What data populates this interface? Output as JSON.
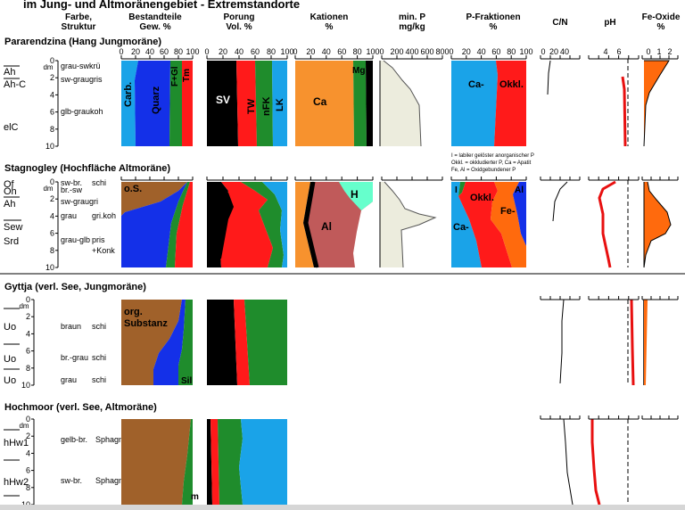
{
  "title": "im Jung- und Altmoränengebiet - Extremstandorte",
  "headers": {
    "farbe": [
      "Farbe,",
      "Struktur"
    ],
    "bestand": [
      "Bestandteile",
      "Gew. %"
    ],
    "porung": [
      "Porung",
      "Vol. %"
    ],
    "kationen": [
      "Kationen",
      "%"
    ],
    "minp": [
      "min. P",
      "mg/kg"
    ],
    "pfrak": [
      "P-Fraktionen",
      "%"
    ],
    "cn": "C/N",
    "ph": "pH",
    "fe": [
      "Fe-Oxide",
      "%"
    ]
  },
  "ticks": {
    "pct": [
      "0",
      "20",
      "40",
      "60",
      "80",
      "100"
    ],
    "minp": [
      "0",
      "200",
      "400",
      "600",
      "800"
    ],
    "cn": [
      "0",
      "20",
      "40"
    ],
    "ph": [
      "4",
      "6"
    ],
    "fe": [
      "0",
      "1",
      "2"
    ],
    "depth": [
      "0",
      "2",
      "4",
      "6",
      "8",
      "10"
    ],
    "dm": "dm"
  },
  "sections": {
    "s1": {
      "title": "Pararendzina (Hang Jungmoräne)",
      "horizons": [
        "Ah",
        "Ah-C",
        "elC"
      ],
      "colors": [
        "grau-swkrü",
        "sw-graugris",
        "glb-graukoh"
      ],
      "bestand_labels": [
        "Carb.",
        "Quarz",
        "F+Gl",
        "Tm"
      ],
      "porung_labels": [
        "SV",
        "TW",
        "nFK",
        "LK"
      ],
      "kation_labels": [
        "Ca",
        "Mg"
      ],
      "pfrak_labels": [
        "Ca-",
        "Okkl."
      ]
    },
    "s2": {
      "title": "Stagnogley (Hochfläche Altmoräne)",
      "horizons": [
        "Of",
        "Oh",
        "Ah",
        "Sew",
        "Srd"
      ],
      "colors": [
        "sw-br.",
        "br.-sw",
        "sw-graugri",
        "grau",
        "grau-glb"
      ],
      "structure": [
        "schi",
        "gri.koh",
        "pris",
        "+Konk"
      ],
      "bestand_labels": [
        "o.S."
      ],
      "kation_labels": [
        "H",
        "Al"
      ],
      "pfrak_labels": [
        "I",
        "Okkl.",
        "Al",
        "Fe-",
        "Ca-"
      ],
      "legend": [
        "I = labiler gelöster anorganischer P",
        "Okkl. = okkludierter P, Ca =  Apatit",
        "Fe, Al = Oxidgebundener P"
      ]
    },
    "s3": {
      "title": "Gyttja (verl. See, Jungmoräne)",
      "horizons": [
        "Uo",
        "Uo",
        "Uo"
      ],
      "colors": [
        "braun",
        "br.-grau",
        "grau"
      ],
      "structure": [
        "schi",
        "schi",
        "schi"
      ],
      "bestand_labels": [
        "org.",
        "Substanz",
        "Sil"
      ]
    },
    "s4": {
      "title": "Hochmoor (verl. See, Altmoräne)",
      "horizons": [
        "hHw1",
        "hHw2"
      ],
      "colors": [
        "gelb-br.",
        "sw-br."
      ],
      "structure": [
        "Sphagn.",
        "Sphagn."
      ],
      "bestand_labels": [
        "m"
      ]
    }
  },
  "palette": {
    "carb": "#1aa3e8",
    "quarz": "#1430e8",
    "fgl": "#1f8c2c",
    "tm": "#ff1a1a",
    "sv": "#000000",
    "tw": "#ff1a1a",
    "nfk": "#1f8c2c",
    "lk": "#1aa3e8",
    "ca": "#f7922e",
    "mg": "#1f8c2c",
    "h": "#66ffcc",
    "al": "#c05a5a",
    "minp": "#ececdd",
    "organic": "#a0612a",
    "fe": "#ff6a0d",
    "ph": "#e81010"
  }
}
